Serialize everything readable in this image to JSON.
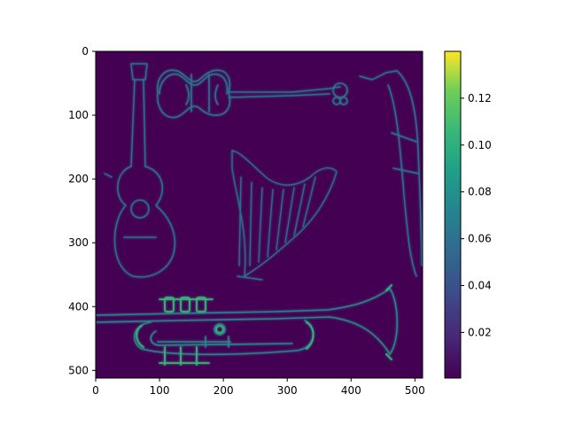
{
  "chart_data": {
    "type": "heatmap",
    "title": "",
    "xlabel": "",
    "ylabel": "",
    "colormap": "viridis",
    "image_shape": [
      512,
      512
    ],
    "xlim": [
      0,
      512
    ],
    "ylim": [
      512,
      0
    ],
    "x_ticks": [
      0,
      100,
      200,
      300,
      400,
      500
    ],
    "x_tick_labels": [
      "0",
      "100",
      "200",
      "300",
      "400",
      "500"
    ],
    "y_ticks": [
      0,
      100,
      200,
      300,
      400,
      500
    ],
    "y_tick_labels": [
      "0",
      "100",
      "200",
      "300",
      "400",
      "500"
    ],
    "colorbar": {
      "range": [
        0.0005,
        0.14
      ],
      "ticks": [
        0.02,
        0.04,
        0.06,
        0.08,
        0.1,
        0.12
      ],
      "tick_labels": [
        "0.02",
        "0.04",
        "0.06",
        "0.08",
        "0.10",
        "0.12"
      ]
    },
    "depicted_objects": [
      "violin",
      "guitar",
      "harp",
      "saxophone",
      "trumpet"
    ],
    "background_color": "#440154",
    "edge_color": "#2a8a8c",
    "highlight_color": "#35b779"
  }
}
